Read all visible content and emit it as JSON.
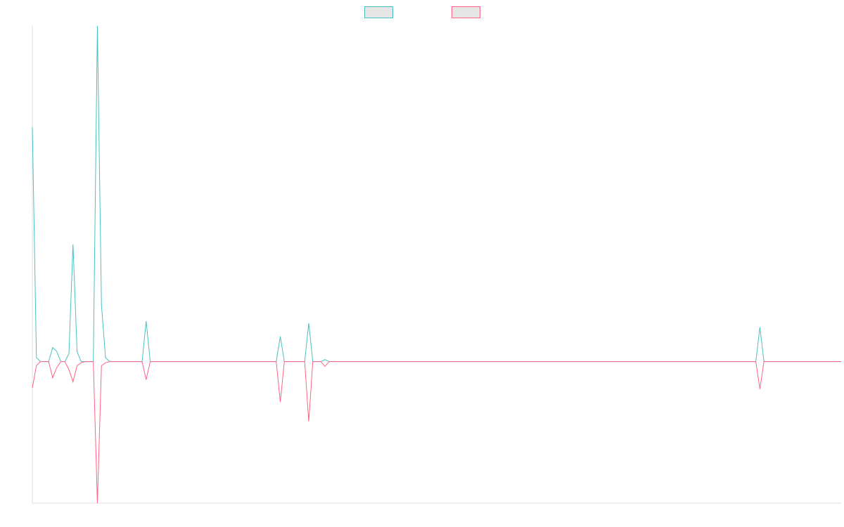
{
  "chart_data": {
    "type": "line",
    "title": "",
    "xlabel": "",
    "ylabel": "",
    "x_count": 200,
    "ylim": [
      -35,
      83
    ],
    "grid": false,
    "legend": {
      "placement": "top-center"
    },
    "series": [
      {
        "name": "",
        "color": "#4bc0c0",
        "fill_color": "#e6e6e6",
        "points": [
          [
            0,
            58
          ],
          [
            1,
            1
          ],
          [
            2,
            0
          ],
          [
            3,
            0
          ],
          [
            4,
            0
          ],
          [
            5,
            3.5
          ],
          [
            6,
            2.5
          ],
          [
            7,
            0
          ],
          [
            8,
            0
          ],
          [
            9,
            2
          ],
          [
            10,
            29
          ],
          [
            11,
            2.5
          ],
          [
            12,
            0
          ],
          [
            13,
            0
          ],
          [
            14,
            0
          ],
          [
            15,
            0
          ],
          [
            16,
            83
          ],
          [
            17,
            14
          ],
          [
            18,
            1
          ],
          [
            19,
            0
          ],
          [
            20,
            0
          ],
          [
            21,
            0
          ],
          [
            22,
            0
          ],
          [
            23,
            0
          ],
          [
            24,
            0
          ],
          [
            25,
            0
          ],
          [
            26,
            0
          ],
          [
            27,
            0
          ],
          [
            28,
            10
          ],
          [
            29,
            0
          ],
          [
            60,
            0
          ],
          [
            61,
            6.2
          ],
          [
            62,
            0
          ],
          [
            67,
            0
          ],
          [
            68,
            9.5
          ],
          [
            69,
            0
          ],
          [
            71,
            0
          ],
          [
            72,
            0.5
          ],
          [
            73,
            0
          ],
          [
            178,
            0
          ],
          [
            179,
            8.5
          ],
          [
            180,
            0
          ],
          [
            199,
            0
          ]
        ]
      },
      {
        "name": "",
        "color": "#ff6384",
        "fill_color": "#e6e6e6",
        "points": [
          [
            0,
            -6.5
          ],
          [
            1,
            -1
          ],
          [
            2,
            0
          ],
          [
            3,
            0
          ],
          [
            4,
            0
          ],
          [
            5,
            -4
          ],
          [
            6,
            -1.5
          ],
          [
            7,
            0
          ],
          [
            8,
            0
          ],
          [
            9,
            -2
          ],
          [
            10,
            -5
          ],
          [
            11,
            -1
          ],
          [
            12,
            -0.3
          ],
          [
            13,
            0
          ],
          [
            14,
            0
          ],
          [
            15,
            0
          ],
          [
            16,
            -35
          ],
          [
            17,
            -1
          ],
          [
            18,
            -0.3
          ],
          [
            19,
            0
          ],
          [
            20,
            0
          ],
          [
            21,
            0
          ],
          [
            22,
            0
          ],
          [
            23,
            0
          ],
          [
            24,
            0
          ],
          [
            25,
            0
          ],
          [
            26,
            0
          ],
          [
            27,
            0
          ],
          [
            28,
            -4.5
          ],
          [
            29,
            0
          ],
          [
            60,
            0
          ],
          [
            61,
            -10
          ],
          [
            62,
            0
          ],
          [
            67,
            0
          ],
          [
            68,
            -14.8
          ],
          [
            69,
            0
          ],
          [
            71,
            0
          ],
          [
            72,
            -1.2
          ],
          [
            73,
            0
          ],
          [
            178,
            0
          ],
          [
            179,
            -6.8
          ],
          [
            180,
            0
          ],
          [
            199,
            0
          ]
        ]
      }
    ]
  }
}
